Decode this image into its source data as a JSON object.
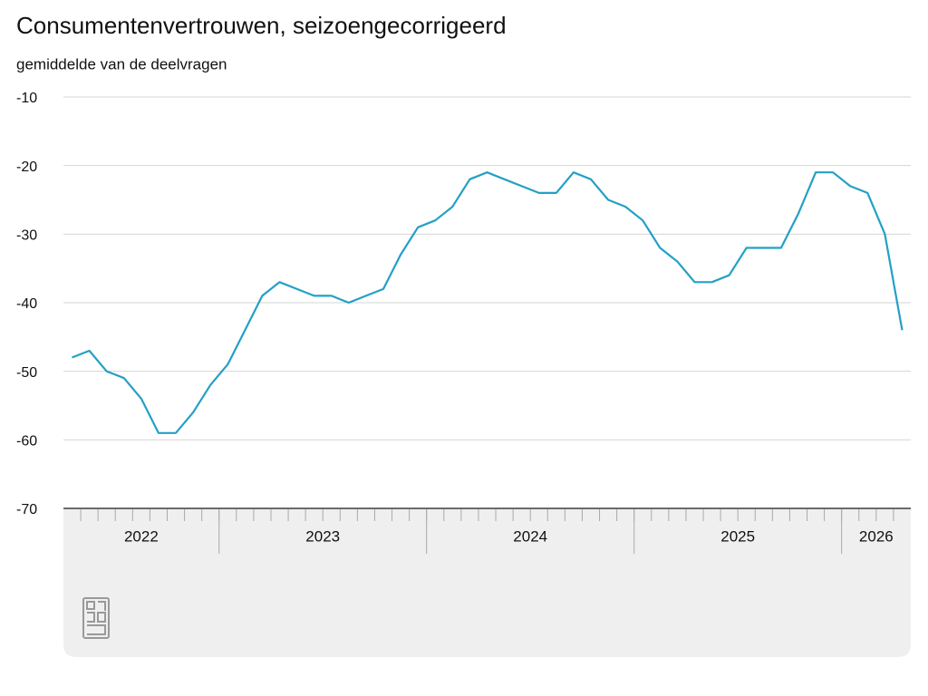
{
  "chart_data": {
    "type": "line",
    "title": "Consumentenvertrouwen, seizoengecorrigeerd",
    "subtitle": "gemiddelde van de deelvragen",
    "categories": [
      null,
      null,
      null,
      null,
      null,
      null,
      null,
      null,
      null,
      null,
      null,
      null,
      null,
      null,
      null,
      null,
      null,
      null,
      null,
      null,
      null,
      null,
      null,
      null,
      null,
      null,
      null,
      null,
      null,
      null,
      null,
      null,
      null,
      null,
      null,
      null,
      null,
      null,
      null,
      null,
      null,
      null,
      null,
      null,
      null,
      null,
      null,
      null,
      null
    ],
    "x_groups": [
      {
        "label": "2022",
        "count": 9
      },
      {
        "label": "2023",
        "count": 12
      },
      {
        "label": "2024",
        "count": 12
      },
      {
        "label": "2025",
        "count": 12
      },
      {
        "label": "2026",
        "count": 4
      }
    ],
    "series": [
      {
        "color": "#23a0c6",
        "values": [
          -48,
          -47,
          -50,
          -51,
          -54,
          -59,
          -59,
          -56,
          -52,
          -49,
          -44,
          -39,
          -37,
          -38,
          -39,
          -39,
          -40,
          -39,
          -38,
          -33,
          -29,
          -28,
          -26,
          -22,
          -21,
          -22,
          -23,
          -24,
          -24,
          -21,
          -22,
          -25,
          -26,
          -28,
          -32,
          -34,
          -37,
          -37,
          -36,
          -32,
          -32,
          -32,
          -27,
          -21,
          -21,
          -23,
          -24,
          -30,
          -44
        ]
      }
    ],
    "ylim": [
      -70,
      -10
    ],
    "yticks": [
      -70,
      -60,
      -50,
      -40,
      -30,
      -20,
      -10
    ],
    "grid": true
  }
}
